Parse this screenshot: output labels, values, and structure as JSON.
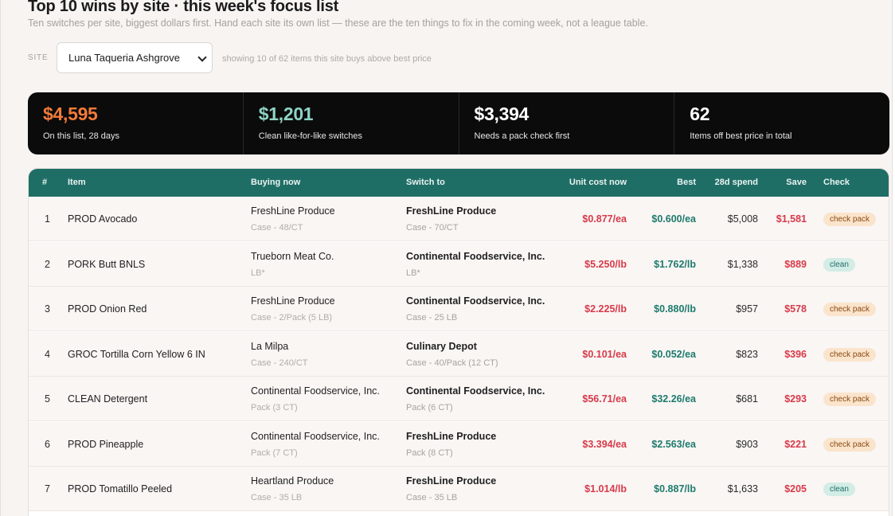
{
  "header": {
    "title": "Top 10 wins by site · this week's focus list",
    "subtitle": "Ten switches per site, biggest dollars first. Hand each site its own list — these are the ten things to fix in the coming week, not a league table."
  },
  "site_filter": {
    "label": "SITE",
    "selected": "Luna Taqueria Ashgrove",
    "showing_text": "showing 10 of 62 items this site buys above best price"
  },
  "kpis": [
    {
      "value": "$4,595",
      "label": "On this list, 28 days",
      "color": "#f27a3a"
    },
    {
      "value": "$1,201",
      "label": "Clean like-for-like switches",
      "color": "#8fd3c5"
    },
    {
      "value": "$3,394",
      "label": "Needs a pack check first",
      "color": "#ffffff"
    },
    {
      "value": "62",
      "label": "Items off best price in total",
      "color": "#ffffff"
    }
  ],
  "table": {
    "columns": {
      "num": "#",
      "item": "Item",
      "buying_now": "Buying now",
      "switch_to": "Switch to",
      "unit_cost_now": "Unit cost now",
      "best": "Best",
      "spend_28d": "28d spend",
      "save": "Save",
      "check": "Check"
    },
    "rows": [
      {
        "num": "1",
        "item": "PROD Avocado",
        "buy_vendor": "FreshLine Produce",
        "buy_pack": "Case - 48/CT",
        "switch_vendor": "FreshLine Produce",
        "switch_pack": "Case - 70/CT",
        "unit_now": "$0.877/ea",
        "best": "$0.600/ea",
        "spend": "$5,008",
        "save": "$1,581",
        "check": "check pack",
        "check_type": "check"
      },
      {
        "num": "2",
        "item": "PORK Butt BNLS",
        "buy_vendor": "Trueborn Meat Co.",
        "buy_pack": "LB*",
        "switch_vendor": "Continental Foodservice, Inc.",
        "switch_pack": "LB*",
        "unit_now": "$5.250/lb",
        "best": "$1.762/lb",
        "spend": "$1,338",
        "save": "$889",
        "check": "clean",
        "check_type": "clean"
      },
      {
        "num": "3",
        "item": "PROD Onion Red",
        "buy_vendor": "FreshLine Produce",
        "buy_pack": "Case - 2/Pack (5 LB)",
        "switch_vendor": "Continental Foodservice, Inc.",
        "switch_pack": "Case - 25 LB",
        "unit_now": "$2.225/lb",
        "best": "$0.880/lb",
        "spend": "$957",
        "save": "$578",
        "check": "check pack",
        "check_type": "check"
      },
      {
        "num": "4",
        "item": "GROC Tortilla Corn Yellow 6 IN",
        "buy_vendor": "La Milpa",
        "buy_pack": "Case - 240/CT",
        "switch_vendor": "Culinary Depot",
        "switch_pack": "Case - 40/Pack (12 CT)",
        "unit_now": "$0.101/ea",
        "best": "$0.052/ea",
        "spend": "$823",
        "save": "$396",
        "check": "check pack",
        "check_type": "check"
      },
      {
        "num": "5",
        "item": "CLEAN Detergent",
        "buy_vendor": "Continental Foodservice, Inc.",
        "buy_pack": "Pack (3 CT)",
        "switch_vendor": "Continental Foodservice, Inc.",
        "switch_pack": "Pack (6 CT)",
        "unit_now": "$56.71/ea",
        "best": "$32.26/ea",
        "spend": "$681",
        "save": "$293",
        "check": "check pack",
        "check_type": "check"
      },
      {
        "num": "6",
        "item": "PROD Pineapple",
        "buy_vendor": "Continental Foodservice, Inc.",
        "buy_pack": "Pack (7 CT)",
        "switch_vendor": "FreshLine Produce",
        "switch_pack": "Pack (8 CT)",
        "unit_now": "$3.394/ea",
        "best": "$2.563/ea",
        "spend": "$903",
        "save": "$221",
        "check": "check pack",
        "check_type": "check"
      },
      {
        "num": "7",
        "item": "PROD Tomatillo Peeled",
        "buy_vendor": "Heartland Produce",
        "buy_pack": "Case - 35 LB",
        "switch_vendor": "FreshLine Produce",
        "switch_pack": "Case - 35 LB",
        "unit_now": "$1.014/lb",
        "best": "$0.887/lb",
        "spend": "$1,633",
        "save": "$205",
        "check": "clean",
        "check_type": "clean"
      }
    ]
  }
}
